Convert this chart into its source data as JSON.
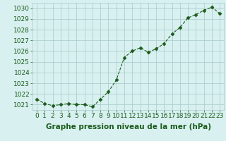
{
  "x": [
    0,
    1,
    2,
    3,
    4,
    5,
    6,
    7,
    8,
    9,
    10,
    11,
    12,
    13,
    14,
    15,
    16,
    17,
    18,
    19,
    20,
    21,
    22,
    23
  ],
  "y": [
    1021.5,
    1021.1,
    1020.9,
    1021.0,
    1021.1,
    1021.0,
    1021.0,
    1020.8,
    1021.5,
    1022.2,
    1023.3,
    1025.4,
    1026.0,
    1026.3,
    1025.9,
    1026.2,
    1026.7,
    1027.6,
    1028.2,
    1029.1,
    1029.4,
    1029.8,
    1030.1,
    1029.5
  ],
  "ylim": [
    1020.5,
    1030.5
  ],
  "yticks": [
    1021,
    1022,
    1023,
    1024,
    1025,
    1026,
    1027,
    1028,
    1029,
    1030
  ],
  "xticks": [
    0,
    1,
    2,
    3,
    4,
    5,
    6,
    7,
    8,
    9,
    10,
    11,
    12,
    13,
    14,
    15,
    16,
    17,
    18,
    19,
    20,
    21,
    22,
    23
  ],
  "xlabel": "Graphe pression niveau de la mer (hPa)",
  "line_color": "#1a5c1a",
  "marker": "D",
  "marker_size": 2.5,
  "bg_color": "#d8f0f0",
  "grid_color": "#a8c8c8",
  "xlabel_fontsize": 7.5,
  "tick_fontsize": 6.5
}
